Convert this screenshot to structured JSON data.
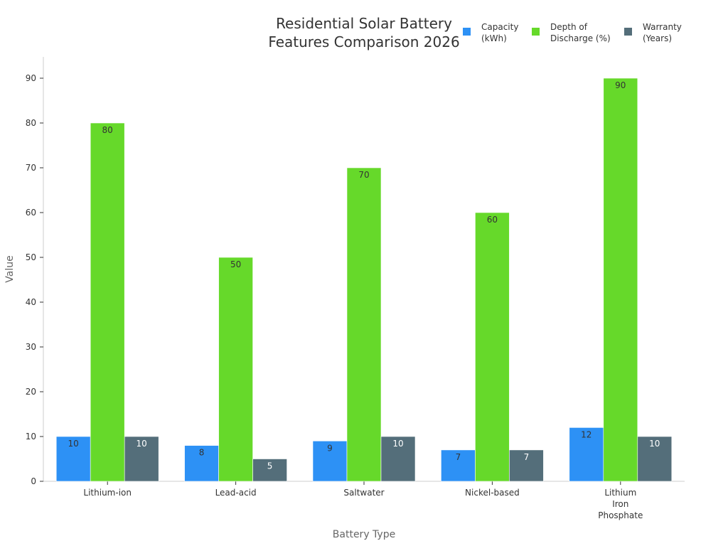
{
  "chart_data": {
    "type": "bar",
    "title": "Residential Solar Battery Features Comparison 2026",
    "title_lines": [
      "Residential Solar Battery",
      "Features Comparison 2026"
    ],
    "xlabel": "Battery Type",
    "ylabel": "Value",
    "ylim": [
      0,
      95
    ],
    "yticks": [
      0,
      10,
      20,
      30,
      40,
      50,
      60,
      70,
      80,
      90
    ],
    "grid": false,
    "legend_position": "top-right",
    "categories": [
      "Lithium-ion",
      "Lead-acid",
      "Saltwater",
      "Nickel-based",
      "Lithium Iron Phosphate"
    ],
    "category_label_lines": [
      [
        "Lithium-ion"
      ],
      [
        "Lead-acid"
      ],
      [
        "Saltwater"
      ],
      [
        "Nickel-based"
      ],
      [
        "Lithium",
        "Iron",
        "Phosphate"
      ]
    ],
    "series": [
      {
        "name": "Capacity (kWh)",
        "legend_lines": [
          "Capacity",
          "(kWh)"
        ],
        "color": "#2d91f5",
        "label_color": "#333333",
        "values": [
          10,
          8,
          9,
          7,
          12
        ]
      },
      {
        "name": "Depth of Discharge (%)",
        "legend_lines": [
          "Depth of",
          "Discharge (%)"
        ],
        "color": "#66d92a",
        "label_color": "#333333",
        "values": [
          80,
          50,
          70,
          60,
          90
        ]
      },
      {
        "name": "Warranty (Years)",
        "legend_lines": [
          "Warranty",
          "(Years)"
        ],
        "color": "#546e7a",
        "label_color": "#ffffff",
        "values": [
          10,
          5,
          10,
          7,
          10
        ]
      }
    ]
  }
}
